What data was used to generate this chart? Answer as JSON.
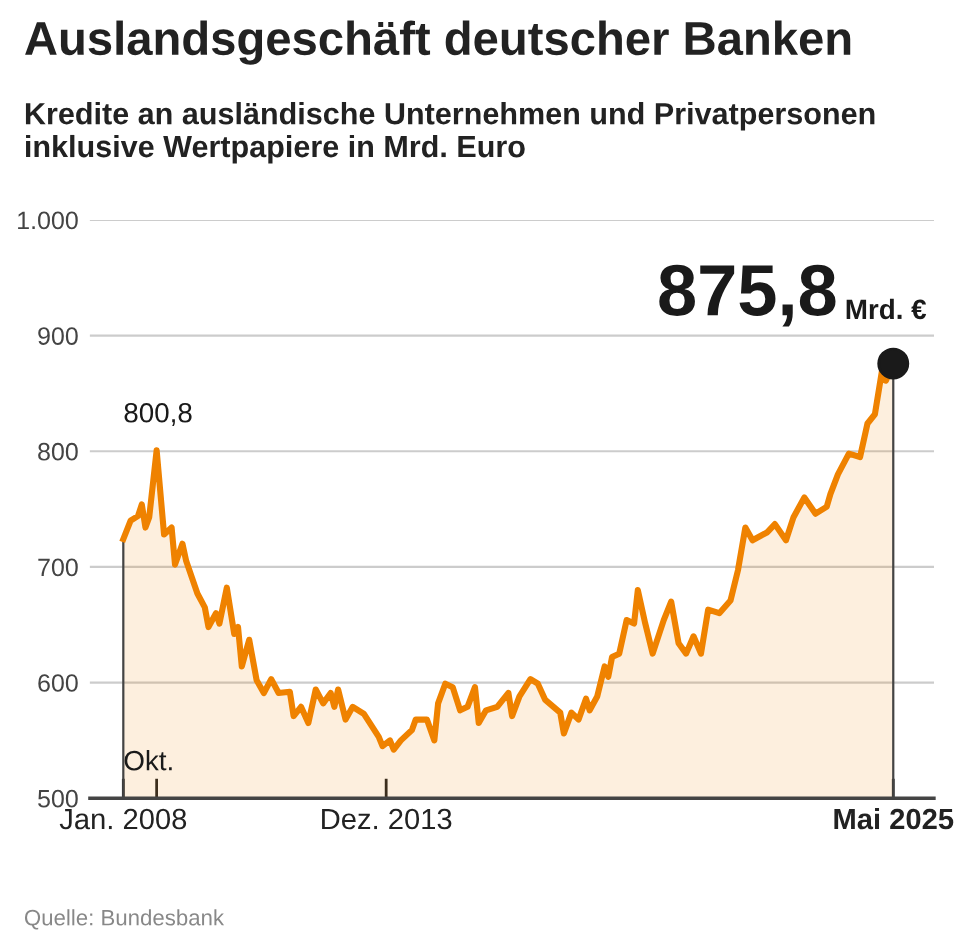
{
  "chart_data": {
    "type": "area",
    "title": "Auslandsgeschäft deutscher Banken",
    "subtitle": "Kredite an ausländische Unternehmen und Privatpersonen inklusive Wertpapiere in Mrd. Euro",
    "x": [
      "2008-01",
      "2008-03",
      "2008-05",
      "2008-06",
      "2008-07",
      "2008-08",
      "2008-10",
      "2008-12",
      "2009-02",
      "2009-03",
      "2009-05",
      "2009-06",
      "2009-09",
      "2009-11",
      "2009-12",
      "2010-02",
      "2010-03",
      "2010-05",
      "2010-07",
      "2010-08",
      "2010-09",
      "2010-11",
      "2011-01",
      "2011-03",
      "2011-05",
      "2011-07",
      "2011-10",
      "2011-11",
      "2012-01",
      "2012-03",
      "2012-05",
      "2012-07",
      "2012-09",
      "2012-10",
      "2012-11",
      "2013-01",
      "2013-03",
      "2013-06",
      "2013-10",
      "2013-11",
      "2014-01",
      "2014-02",
      "2014-04",
      "2014-07",
      "2014-08",
      "2014-11",
      "2015-01",
      "2015-02",
      "2015-04",
      "2015-06",
      "2015-08",
      "2015-10",
      "2015-12",
      "2016-01",
      "2016-03",
      "2016-06",
      "2016-09",
      "2016-10",
      "2016-12",
      "2017-03",
      "2017-05",
      "2017-07",
      "2017-11",
      "2017-12",
      "2018-02",
      "2018-04",
      "2018-06",
      "2018-07",
      "2018-09",
      "2018-11",
      "2018-12",
      "2019-01",
      "2019-03",
      "2019-05",
      "2019-07",
      "2019-08",
      "2019-10",
      "2019-12",
      "2020-03",
      "2020-05",
      "2020-07",
      "2020-09",
      "2020-11",
      "2021-01",
      "2021-03",
      "2021-06",
      "2021-09",
      "2021-11",
      "2022-01",
      "2022-03",
      "2022-07",
      "2022-09",
      "2022-12",
      "2023-02",
      "2023-05",
      "2023-08",
      "2023-11",
      "2023-12",
      "2024-02",
      "2024-05",
      "2024-08",
      "2024-10",
      "2024-12",
      "2025-02",
      "2025-03",
      "2025-05"
    ],
    "series": [
      {
        "color": "#ef8200",
        "values": [
          724,
          740,
          744,
          754,
          734,
          743,
          800.8,
          728,
          734,
          702,
          720,
          705,
          677,
          665,
          648,
          660,
          651,
          682,
          642,
          648,
          614,
          637,
          602,
          591,
          603,
          591,
          592,
          571,
          579,
          565,
          594,
          582,
          591,
          579,
          594,
          568,
          579,
          573,
          553,
          545,
          550,
          542,
          550,
          559,
          568,
          568,
          550,
          582,
          599,
          596,
          576,
          579,
          596,
          565,
          576,
          579,
          591,
          571,
          588,
          603,
          599,
          585,
          574,
          556,
          574,
          568,
          586,
          576,
          588,
          614,
          605,
          622,
          625,
          654,
          651,
          680,
          651,
          625,
          654,
          670,
          634,
          625,
          640,
          625,
          663,
          660,
          671,
          697,
          734,
          723,
          730,
          737,
          723,
          743,
          760,
          746,
          752,
          763,
          780,
          798,
          795,
          824,
          832,
          872,
          861,
          875.8
        ]
      },
      {
        "type": "scatter",
        "color": "#1a1a1a",
        "x": [
          "2025-05"
        ],
        "values": [
          875.8
        ]
      }
    ],
    "ylim": [
      500,
      1000
    ],
    "yticks": [
      500,
      600,
      700,
      800,
      900,
      {
        "value": 1000,
        "label": "1.000"
      }
    ],
    "xlim": [
      "2007-04",
      "2026-04"
    ],
    "xticks": [
      {
        "value": "2008-01",
        "label": "Jan. 2008"
      },
      {
        "value": "2008-10",
        "label": null
      },
      {
        "value": "2013-12",
        "label": "Dez. 2013"
      },
      {
        "value": "2025-05",
        "label": "Mai 2025"
      }
    ],
    "grid": "y",
    "legend": false,
    "annotations": [
      {
        "text": "800,8",
        "x": "2008-10",
        "y": 800.8
      },
      {
        "text": "Okt.",
        "x": "2008-10",
        "y": 500
      },
      {
        "text": "875,8",
        "x": "2025-05",
        "y": 875.8
      },
      {
        "text": "Mrd. €",
        "x": "2025-05",
        "y": 875.8
      },
      "Quelle: Bundesbank"
    ]
  }
}
